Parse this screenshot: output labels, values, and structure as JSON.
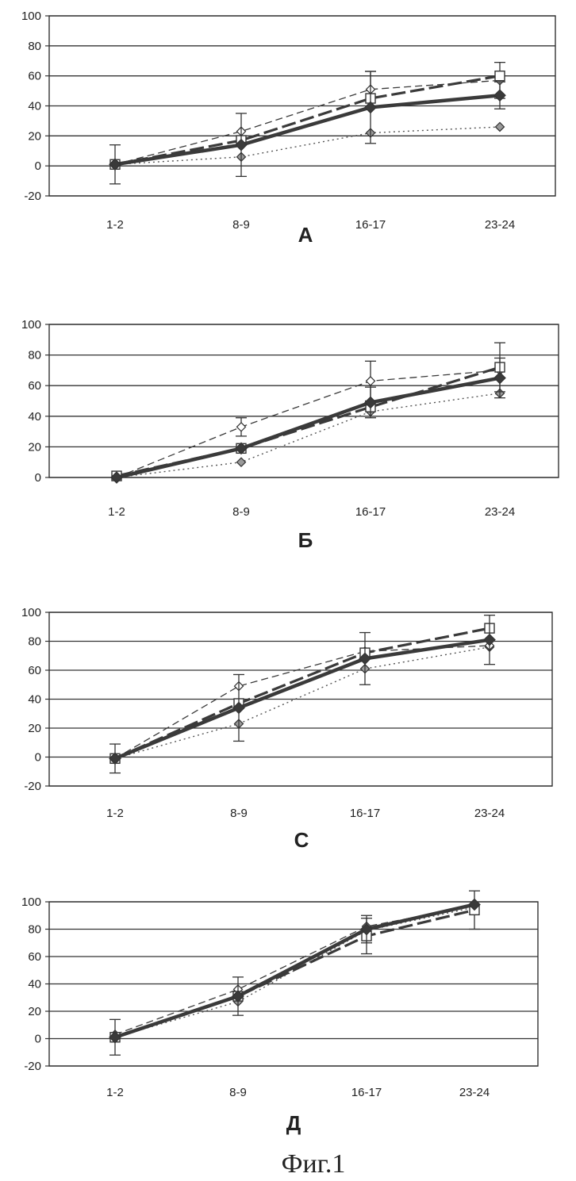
{
  "figure_caption": "Фиг.1",
  "chart_data": [
    {
      "type": "line",
      "panel_label": "А",
      "categories": [
        "1-2",
        "8-9",
        "16-17",
        "23-24"
      ],
      "ylim": [
        -20,
        100
      ],
      "yticks": [
        100,
        80,
        60,
        40,
        20,
        0,
        -20
      ],
      "grid": true,
      "series": [
        {
          "style": "thick-solid-filled-diamond",
          "values": [
            1,
            14,
            39,
            47
          ],
          "err": [
            13,
            21,
            24,
            9
          ]
        },
        {
          "style": "long-dash-square",
          "values": [
            1,
            17,
            45,
            60
          ],
          "err": [
            0,
            0,
            0,
            0
          ]
        },
        {
          "style": "dash-open-diamond",
          "values": [
            1,
            23,
            51,
            57
          ],
          "err": [
            0,
            0,
            12,
            12
          ]
        },
        {
          "style": "dotted-gray-diamond",
          "values": [
            1,
            6,
            22,
            26
          ],
          "err": [
            0,
            0,
            0,
            0
          ]
        }
      ]
    },
    {
      "type": "line",
      "panel_label": "Б",
      "categories": [
        "1-2",
        "8-9",
        "16-17",
        "23-24"
      ],
      "ylim": [
        0,
        100
      ],
      "yticks": [
        100,
        80,
        60,
        40,
        20,
        0
      ],
      "grid": true,
      "series": [
        {
          "style": "thick-solid-filled-diamond",
          "values": [
            0,
            19,
            49,
            65
          ],
          "err": [
            0,
            0,
            10,
            13
          ]
        },
        {
          "style": "long-dash-square",
          "values": [
            1,
            19,
            46,
            72
          ],
          "err": [
            0,
            0,
            0,
            16
          ]
        },
        {
          "style": "dash-open-diamond",
          "values": [
            0,
            33,
            63,
            70
          ],
          "err": [
            0,
            6,
            13,
            0
          ]
        },
        {
          "style": "dotted-gray-diamond",
          "values": [
            0,
            10,
            43,
            55
          ],
          "err": [
            0,
            0,
            0,
            0
          ]
        }
      ]
    },
    {
      "type": "line",
      "panel_label": "С",
      "categories": [
        "1-2",
        "8-9",
        "16-17",
        "23-24"
      ],
      "ylim": [
        -20,
        100
      ],
      "yticks": [
        100,
        80,
        60,
        40,
        20,
        0,
        -20
      ],
      "grid": true,
      "series": [
        {
          "style": "thick-solid-filled-diamond",
          "values": [
            -1,
            34,
            68,
            81
          ],
          "err": [
            10,
            23,
            18,
            17
          ]
        },
        {
          "style": "long-dash-square",
          "values": [
            -1,
            37,
            72,
            89
          ],
          "err": [
            0,
            0,
            0,
            0
          ]
        },
        {
          "style": "dash-open-diamond",
          "values": [
            -1,
            49,
            73,
            77
          ],
          "err": [
            0,
            0,
            0,
            0
          ]
        },
        {
          "style": "dotted-gray-diamond",
          "values": [
            -1,
            23,
            61,
            76
          ],
          "err": [
            0,
            0,
            0,
            0
          ]
        }
      ]
    },
    {
      "type": "line",
      "panel_label": "Д",
      "categories": [
        "1-2",
        "8-9",
        "16-17",
        "23-24"
      ],
      "ylim": [
        -20,
        100
      ],
      "yticks": [
        100,
        80,
        60,
        40,
        20,
        0,
        -20
      ],
      "grid": true,
      "series": [
        {
          "style": "thick-solid-filled-diamond",
          "values": [
            1,
            31,
            80,
            98
          ],
          "err": [
            13,
            14,
            10,
            0
          ]
        },
        {
          "style": "long-dash-square",
          "values": [
            1,
            31,
            75,
            94
          ],
          "err": [
            0,
            0,
            13,
            14
          ]
        },
        {
          "style": "dash-open-diamond",
          "values": [
            3,
            36,
            82,
            97
          ],
          "err": [
            0,
            0,
            0,
            0
          ]
        },
        {
          "style": "dotted-gray-diamond",
          "values": [
            1,
            27,
            79,
            96
          ],
          "err": [
            0,
            0,
            0,
            0
          ]
        }
      ]
    }
  ]
}
